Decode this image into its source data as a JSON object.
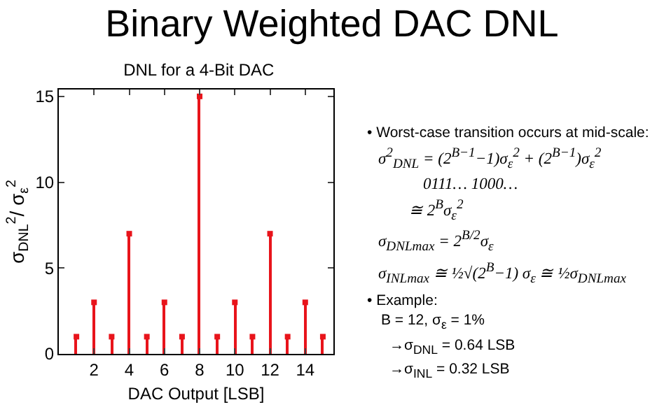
{
  "chart_data": {
    "type": "lollipop",
    "title": "Binary Weighted DAC DNL",
    "subtitle": "DNL for a 4-Bit DAC",
    "xlabel": "DAC Output [LSB]",
    "ylabel": "σ$_{DNL}$$^{2}$/ σ$_{ε}$$^{2}$",
    "x": [
      1,
      2,
      3,
      4,
      5,
      6,
      7,
      8,
      9,
      10,
      11,
      12,
      13,
      14,
      15
    ],
    "values": [
      1,
      3,
      1,
      7,
      1,
      3,
      1,
      15,
      1,
      3,
      1,
      7,
      1,
      3,
      1
    ],
    "color": "#e8141b",
    "marker": "square",
    "xlim": [
      0,
      15.6
    ],
    "ylim": [
      0,
      15.4
    ],
    "xticks": [
      2,
      4,
      6,
      8,
      10,
      12,
      14
    ],
    "yticks": [
      0,
      5,
      10,
      15
    ],
    "annotations": [
      "• Worst-case transition occurs at mid-scale:",
      "σ$^{2}$$_{DNL}$ = (2$^{B−1}$−1)σ$_{ε}$$^{2}$ + (2$^{B−1}$)σ$_{ε}$$^{2}$",
      "0111…        1000…",
      "≅ 2$^{B}$σ$_{ε}$$^{2}$",
      "σ$_{DNLmax}$ = 2$^{B/2}$σ$_{ε}$",
      "σ$_{INLmax}$ ≅ ½√(2$^{B}$−1) σ$_{ε}$ ≅ ½σ$_{DNLmax}$",
      "• Example:",
      "B = 12,  σ$_{ε}$ = 1%",
      "→σ$_{DNL}$ = 0.64 LSB",
      "→σ$_{INL}$ = 0.32 LSB"
    ]
  }
}
